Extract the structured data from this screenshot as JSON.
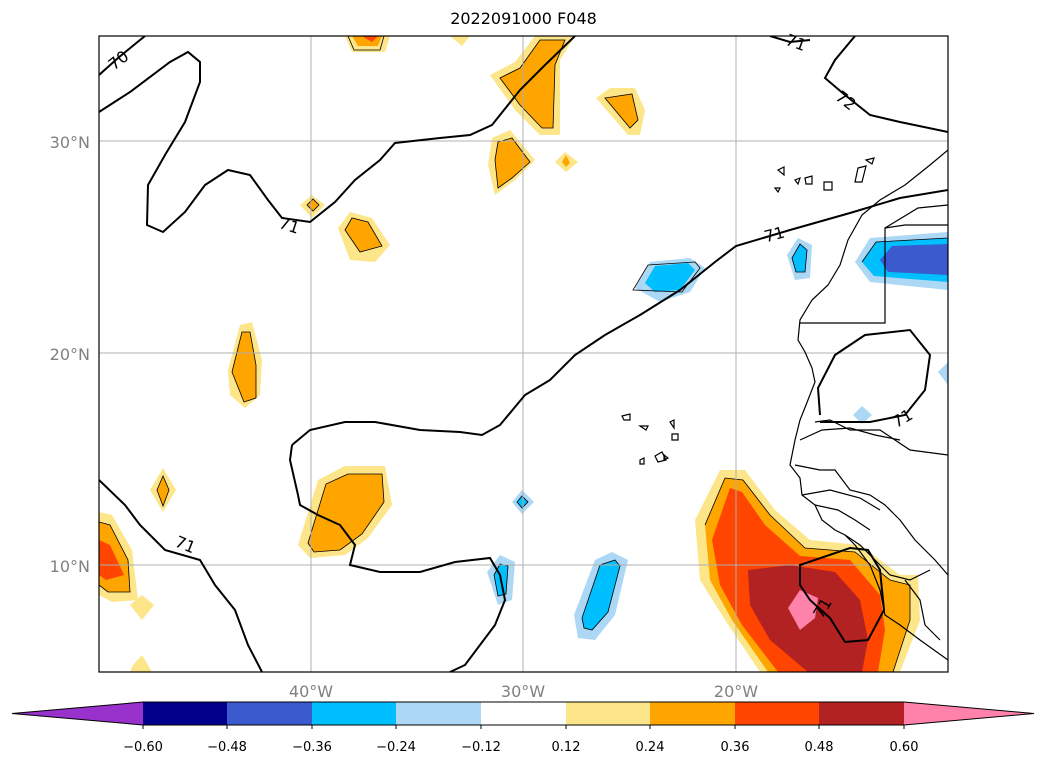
{
  "title": "2022091000 F048",
  "lat_labels": [
    "30°N",
    "20°N",
    "10°N"
  ],
  "lon_labels": [
    "40°W",
    "30°W",
    "20°W"
  ],
  "contour_labels": [
    "70",
    "71",
    "71",
    "71",
    "71",
    "71",
    "72",
    "71"
  ],
  "colorbar": {
    "tick_labels": [
      "−0.60",
      "−0.48",
      "−0.36",
      "−0.24",
      "−0.12",
      "0.12",
      "0.24",
      "0.36",
      "0.48",
      "0.60"
    ],
    "colors": [
      "#9932cc",
      "#00008b",
      "#3a5acd",
      "#00bfff",
      "#add8f5",
      "#ffffff",
      "#fde68a",
      "#ffa500",
      "#ff4500",
      "#b22222",
      "#ff82ab"
    ]
  },
  "map_extent": {
    "lon_min": -50,
    "lon_max": -10,
    "lat_min": 5,
    "lat_max": 35
  }
}
